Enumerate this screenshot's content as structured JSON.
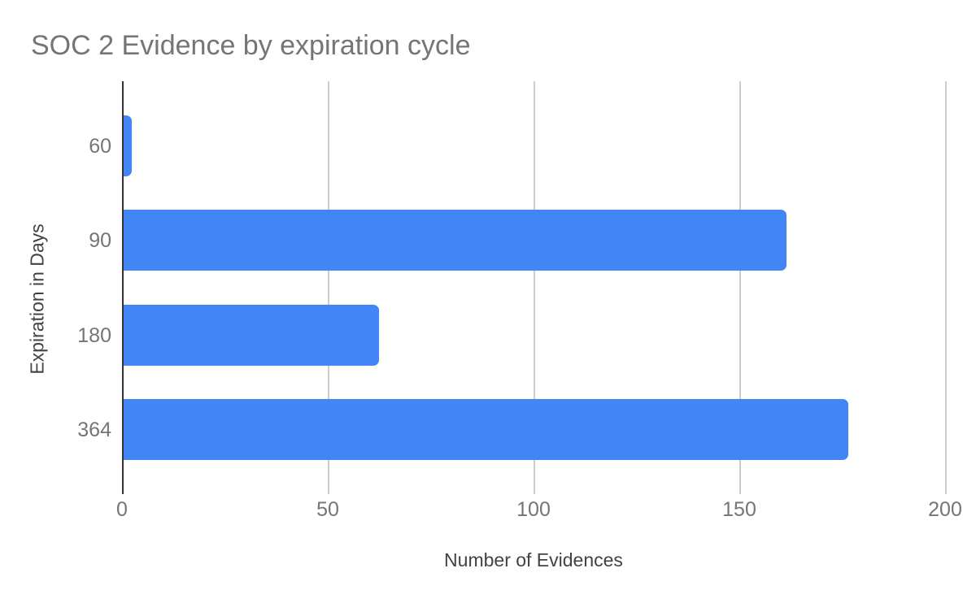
{
  "title": "SOC 2 Evidence by expiration cycle",
  "chart_data": {
    "type": "bar",
    "orientation": "horizontal",
    "title": "SOC 2 Evidence by expiration cycle",
    "categories": [
      "60",
      "90",
      "180",
      "364"
    ],
    "values": [
      2,
      161,
      62,
      176
    ],
    "xlabel": "Number of Evidences",
    "ylabel": "Expiration in Days",
    "xlim": [
      0,
      200
    ],
    "xticks": [
      0,
      50,
      100,
      150,
      200
    ],
    "grid": true,
    "legend_position": "none",
    "colors": {
      "bar": "#4285f4",
      "gridline": "#cccccc",
      "axis_line": "#333333",
      "title_text": "#757575",
      "tick_label": "#757575",
      "axis_title": "#424242",
      "background": "#ffffff"
    }
  }
}
